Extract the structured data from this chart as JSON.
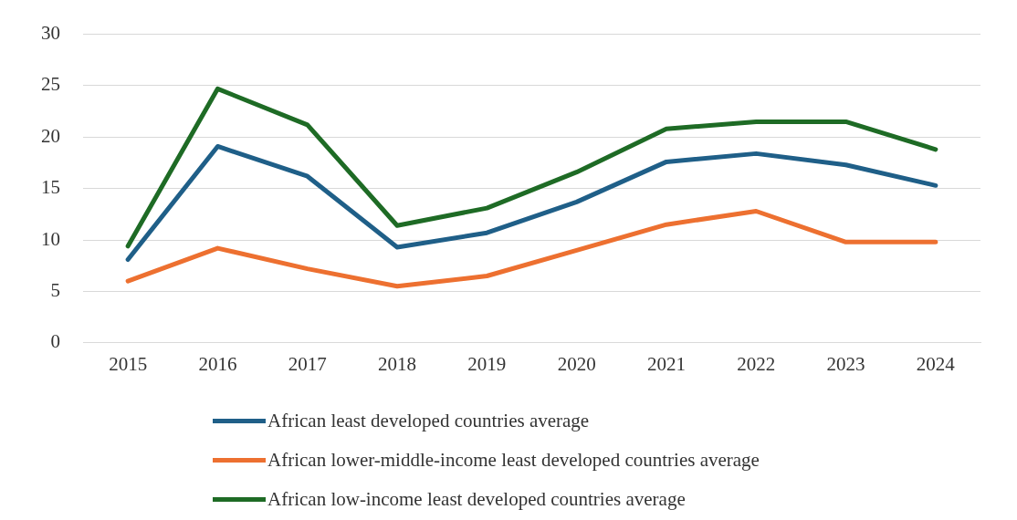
{
  "chart_data": {
    "type": "line",
    "categories": [
      "2015",
      "2016",
      "2017",
      "2018",
      "2019",
      "2020",
      "2021",
      "2022",
      "2023",
      "2024"
    ],
    "series": [
      {
        "name": "African least developed countries average",
        "color": "#1f5f88",
        "values": [
          8.1,
          19.1,
          16.2,
          9.3,
          10.7,
          13.7,
          17.6,
          18.4,
          17.3,
          15.3
        ]
      },
      {
        "name": "African lower-middle-income least developed countries average",
        "color": "#ed7030",
        "values": [
          6.0,
          9.2,
          7.2,
          5.5,
          6.5,
          9.0,
          11.5,
          12.8,
          9.8,
          9.8
        ]
      },
      {
        "name": "African low-income least developed countries average",
        "color": "#1e6b25",
        "values": [
          9.4,
          24.7,
          21.2,
          11.4,
          13.1,
          16.6,
          20.8,
          21.5,
          21.5,
          18.8
        ]
      }
    ],
    "ylim": [
      0,
      30
    ],
    "yticks": [
      0,
      5,
      10,
      15,
      20,
      25,
      30
    ],
    "grid": "y",
    "legend": "bottom",
    "marker": "none",
    "line_style": "solid"
  }
}
